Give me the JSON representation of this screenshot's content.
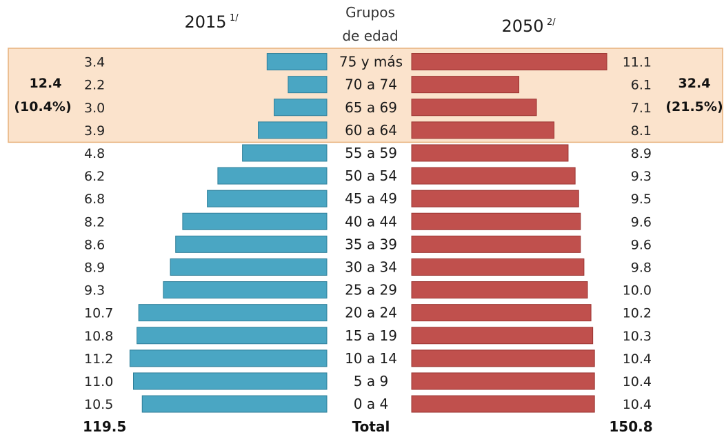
{
  "chart_data": {
    "type": "bar",
    "subtype": "population-pyramid",
    "categories_header": [
      "Grupos",
      "de edad"
    ],
    "categories": [
      "75 y más",
      "70 a 74",
      "65 a 69",
      "60 a 64",
      "55 a 59",
      "50 a 54",
      "45 a 49",
      "40 a 44",
      "35 a 39",
      "30 a 34",
      "25 a 29",
      "20 a 24",
      "15 a 19",
      "10 a 14",
      "5 a 9",
      "0 a 4"
    ],
    "series": [
      {
        "year": "2015",
        "note": "1/",
        "side": "left",
        "values": [
          3.4,
          2.2,
          3.0,
          3.9,
          4.8,
          6.2,
          6.8,
          8.2,
          8.6,
          8.9,
          9.3,
          10.7,
          10.8,
          11.2,
          11.0,
          10.5
        ],
        "value_labels": [
          "3.4",
          "2.2",
          "3.0",
          "3.9",
          "4.8",
          "6.2",
          "6.8",
          "8.2",
          "8.6",
          "8.9",
          "9.3",
          "10.7",
          "10.8",
          "11.2",
          "11.0",
          "10.5"
        ],
        "total": "119.5",
        "color": "#4aa6c3"
      },
      {
        "year": "2050",
        "note": "2/",
        "side": "right",
        "values": [
          11.1,
          6.1,
          7.1,
          8.1,
          8.9,
          9.3,
          9.5,
          9.6,
          9.6,
          9.8,
          10.0,
          10.2,
          10.3,
          10.4,
          10.4,
          10.4
        ],
        "value_labels": [
          "11.1",
          "6.1",
          "7.1",
          "8.1",
          "8.9",
          "9.3",
          "9.5",
          "9.6",
          "9.6",
          "9.8",
          "10.0",
          "10.2",
          "10.3",
          "10.4",
          "10.4",
          "10.4"
        ],
        "total": "150.8",
        "color": "#c0504d"
      }
    ],
    "highlight": {
      "categories": [
        "75 y más",
        "70 a 74",
        "65 a 69",
        "60 a 64"
      ],
      "color": "#fbe3cc",
      "left_value": "12.4",
      "left_percent": "(10.4%)",
      "right_value": "32.4",
      "right_percent": "(21.5%)"
    },
    "total_label": "Total"
  }
}
